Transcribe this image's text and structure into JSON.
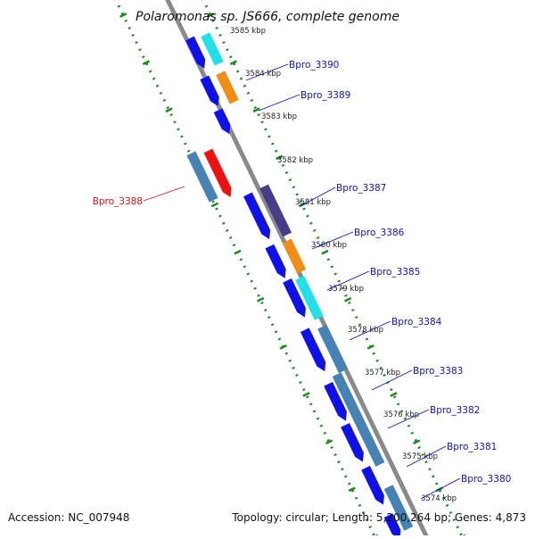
{
  "title": "Polaromonas sp. JS666, complete genome",
  "accession_text": "Accession: NC_007948",
  "topology_text": "Topology: circular; Length: 5,200,264 bp; Genes: 4,873",
  "colors": {
    "backbone": "#8a8a8a",
    "tick_track": "#1f8a1f",
    "label_forward": "#1010cc",
    "label_reverse": "#dd1111",
    "blue": "#1010e8",
    "cyan": "#22e0e8",
    "orange": "#f28c14",
    "steel": "#4682b4",
    "gray": "#a8a8b8",
    "slate": "#483d8b",
    "red": "#ee1111"
  },
  "kbp_ticks": [
    "3585 kbp",
    "3584 kbp",
    "3583 kbp",
    "3582 kbp",
    "3581 kbp",
    "3580 kbp",
    "3579 kbp",
    "3578 kbp",
    "3577 kbp",
    "3576 kbp",
    "3575 kbp",
    "3574 kbp"
  ],
  "gene_labels": [
    "Bpro_3390",
    "Bpro_3389",
    "Bpro_3388",
    "Bpro_3387",
    "Bpro_3386",
    "Bpro_3385",
    "Bpro_3384",
    "Bpro_3383",
    "Bpro_3382",
    "Bpro_3381",
    "Bpro_3380"
  ]
}
